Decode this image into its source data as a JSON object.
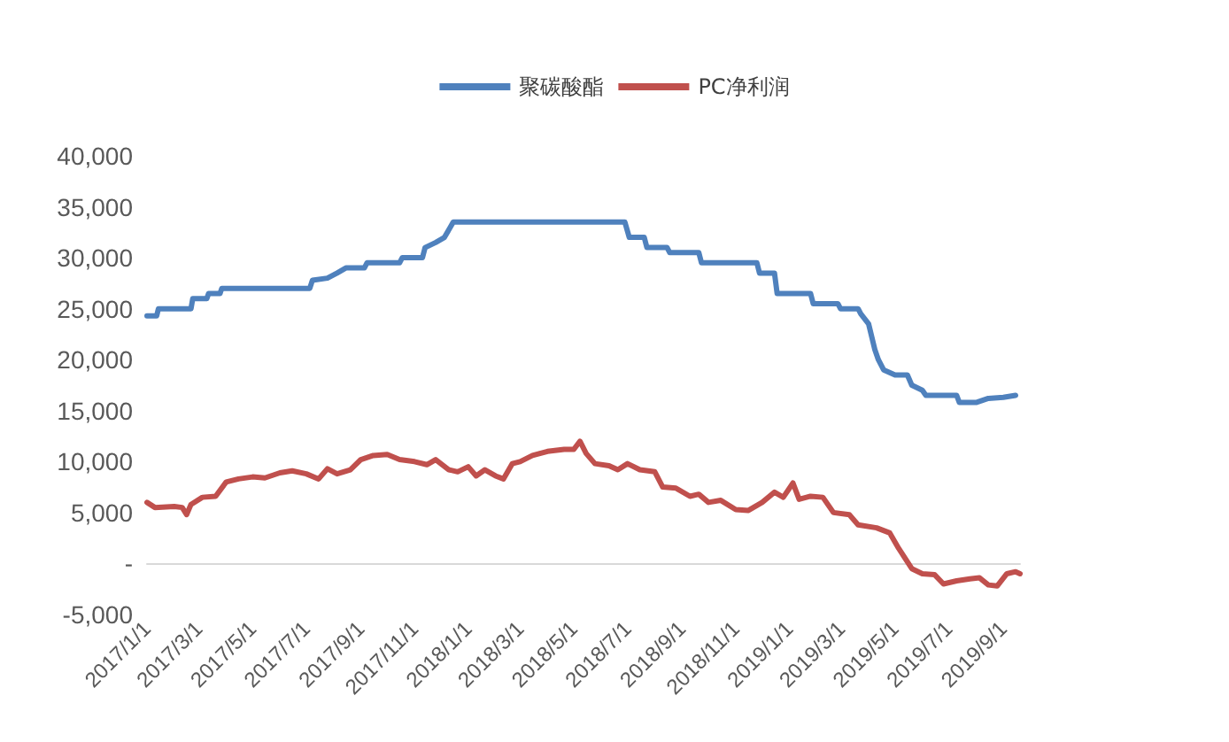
{
  "chart_data": {
    "type": "line",
    "legend": "top",
    "grid": false,
    "marker": "none",
    "line_style": "solid",
    "xlim": [
      "2017-01-01",
      "2019-09-20"
    ],
    "xticks": [
      {
        "value": "2017-01-01",
        "label": "2017/1/1"
      },
      {
        "value": "2017-03-01",
        "label": "2017/3/1"
      },
      {
        "value": "2017-05-01",
        "label": "2017/5/1"
      },
      {
        "value": "2017-07-01",
        "label": "2017/7/1"
      },
      {
        "value": "2017-09-01",
        "label": "2017/9/1"
      },
      {
        "value": "2017-11-01",
        "label": "2017/11/1"
      },
      {
        "value": "2018-01-01",
        "label": "2018/1/1"
      },
      {
        "value": "2018-03-01",
        "label": "2018/3/1"
      },
      {
        "value": "2018-05-01",
        "label": "2018/5/1"
      },
      {
        "value": "2018-07-01",
        "label": "2018/7/1"
      },
      {
        "value": "2018-09-01",
        "label": "2018/9/1"
      },
      {
        "value": "2018-11-01",
        "label": "2018/11/1"
      },
      {
        "value": "2019-01-01",
        "label": "2019/1/1"
      },
      {
        "value": "2019-03-01",
        "label": "2019/3/1"
      },
      {
        "value": "2019-05-01",
        "label": "2019/5/1"
      },
      {
        "value": "2019-07-01",
        "label": "2019/7/1"
      },
      {
        "value": "2019-09-01",
        "label": "2019/9/1"
      }
    ],
    "ylim": [
      -5000,
      40000
    ],
    "yticks": [
      {
        "value": -5000,
        "label": "-5,000"
      },
      {
        "value": 0,
        "label": "-"
      },
      {
        "value": 5000,
        "label": "5,000"
      },
      {
        "value": 10000,
        "label": "10,000"
      },
      {
        "value": 15000,
        "label": "15,000"
      },
      {
        "value": 20000,
        "label": "20,000"
      },
      {
        "value": 25000,
        "label": "25,000"
      },
      {
        "value": 30000,
        "label": "30,000"
      },
      {
        "value": 35000,
        "label": "35,000"
      },
      {
        "value": 40000,
        "label": "40,000"
      }
    ],
    "series": [
      {
        "name": "聚碳酸酯",
        "color": "#4f81bd",
        "x": [
          "2017-01-01",
          "2017-01-12",
          "2017-01-14",
          "2017-02-20",
          "2017-02-22",
          "2017-03-10",
          "2017-03-12",
          "2017-03-25",
          "2017-03-27",
          "2017-07-05",
          "2017-07-08",
          "2017-07-25",
          "2017-08-05",
          "2017-08-15",
          "2017-09-05",
          "2017-09-08",
          "2017-10-15",
          "2017-10-18",
          "2017-11-10",
          "2017-11-13",
          "2017-11-25",
          "2017-12-05",
          "2017-12-15",
          "2018-06-28",
          "2018-07-03",
          "2018-07-20",
          "2018-07-23",
          "2018-08-15",
          "2018-08-18",
          "2018-09-20",
          "2018-09-23",
          "2018-11-25",
          "2018-11-28",
          "2018-12-15",
          "2018-12-18",
          "2019-01-25",
          "2019-01-28",
          "2019-02-25",
          "2019-02-28",
          "2019-03-20",
          "2019-03-23",
          "2019-04-01",
          "2019-04-08",
          "2019-04-12",
          "2019-04-18",
          "2019-05-01",
          "2019-05-15",
          "2019-05-20",
          "2019-06-01",
          "2019-06-05",
          "2019-07-10",
          "2019-07-13",
          "2019-08-01",
          "2019-08-15",
          "2019-09-01",
          "2019-09-15"
        ],
        "values": [
          24300,
          24300,
          25000,
          25000,
          26000,
          26000,
          26500,
          26500,
          27000,
          27000,
          27800,
          28000,
          28500,
          29000,
          29000,
          29500,
          29500,
          30000,
          30000,
          31000,
          31500,
          32000,
          33500,
          33500,
          32000,
          32000,
          31000,
          31000,
          30500,
          30500,
          29500,
          29500,
          28500,
          28500,
          26500,
          26500,
          25500,
          25500,
          25000,
          25000,
          24500,
          23500,
          21000,
          20000,
          19000,
          18500,
          18500,
          17500,
          17000,
          16500,
          16500,
          15800,
          15800,
          16200,
          16300,
          16500
        ]
      },
      {
        "name": "PC净利润",
        "color": "#c0504d",
        "x": [
          "2017-01-01",
          "2017-01-10",
          "2017-02-01",
          "2017-02-10",
          "2017-02-15",
          "2017-02-20",
          "2017-03-05",
          "2017-03-20",
          "2017-04-01",
          "2017-04-15",
          "2017-05-01",
          "2017-05-15",
          "2017-06-01",
          "2017-06-15",
          "2017-07-01",
          "2017-07-15",
          "2017-07-25",
          "2017-08-05",
          "2017-08-20",
          "2017-09-01",
          "2017-09-15",
          "2017-10-01",
          "2017-10-15",
          "2017-11-01",
          "2017-11-15",
          "2017-11-25",
          "2017-12-10",
          "2017-12-20",
          "2018-01-01",
          "2018-01-10",
          "2018-01-20",
          "2018-02-01",
          "2018-02-10",
          "2018-02-20",
          "2018-03-01",
          "2018-03-15",
          "2018-04-01",
          "2018-04-20",
          "2018-05-01",
          "2018-05-08",
          "2018-05-15",
          "2018-05-25",
          "2018-06-10",
          "2018-06-20",
          "2018-07-01",
          "2018-07-15",
          "2018-08-01",
          "2018-08-10",
          "2018-08-25",
          "2018-09-10",
          "2018-09-20",
          "2018-10-01",
          "2018-10-15",
          "2018-11-01",
          "2018-11-15",
          "2018-12-01",
          "2018-12-15",
          "2018-12-25",
          "2019-01-05",
          "2019-01-12",
          "2019-01-25",
          "2019-02-08",
          "2019-02-20",
          "2019-03-10",
          "2019-03-20",
          "2019-04-10",
          "2019-04-25",
          "2019-05-05",
          "2019-05-20",
          "2019-06-01",
          "2019-06-15",
          "2019-06-25",
          "2019-07-10",
          "2019-07-25",
          "2019-08-05",
          "2019-08-15",
          "2019-08-25",
          "2019-09-05",
          "2019-09-15",
          "2019-09-20"
        ],
        "values": [
          6000,
          5500,
          5600,
          5500,
          4800,
          5800,
          6500,
          6600,
          8000,
          8300,
          8500,
          8400,
          8900,
          9100,
          8800,
          8300,
          9300,
          8800,
          9200,
          10200,
          10600,
          10700,
          10200,
          10000,
          9700,
          10200,
          9200,
          9000,
          9500,
          8600,
          9200,
          8600,
          8300,
          9800,
          10000,
          10600,
          11000,
          11200,
          11200,
          12000,
          10800,
          9800,
          9600,
          9200,
          9800,
          9200,
          9000,
          7500,
          7400,
          6600,
          6800,
          6000,
          6200,
          5300,
          5200,
          6000,
          7000,
          6500,
          7900,
          6300,
          6600,
          6500,
          5000,
          4800,
          3800,
          3500,
          3000,
          1500,
          -500,
          -1000,
          -1100,
          -2000,
          -1700,
          -1500,
          -1400,
          -2100,
          -2200,
          -1000,
          -800,
          -1000
        ]
      }
    ]
  }
}
